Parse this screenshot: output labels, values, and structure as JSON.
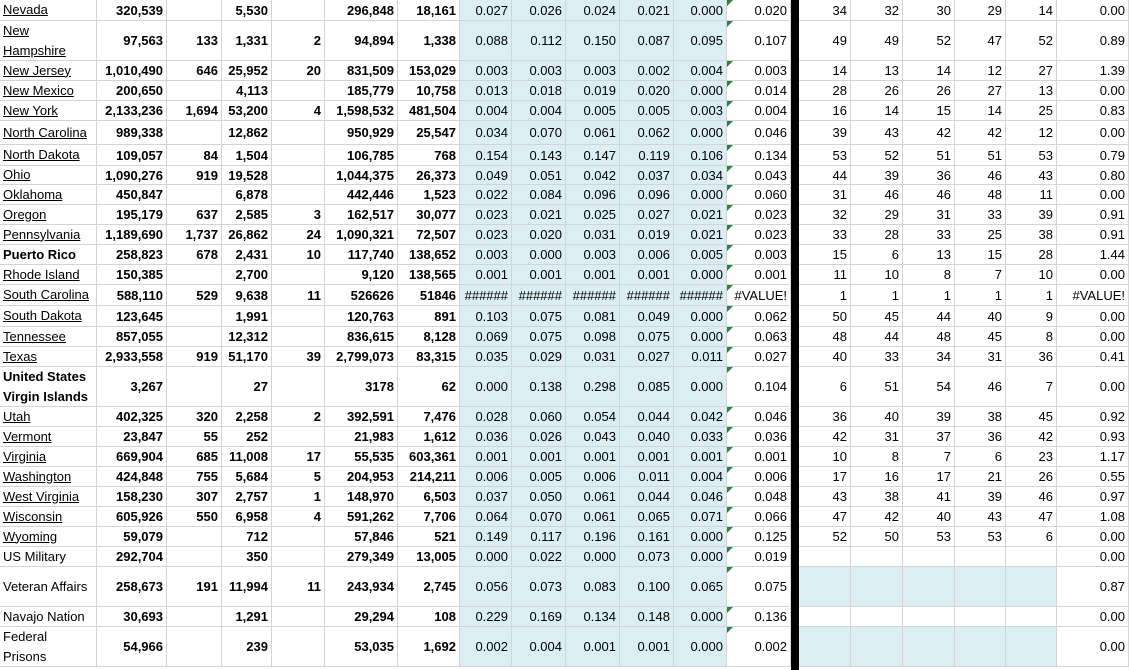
{
  "table": {
    "rows": [
      [
        "Nevada",
        "320,539",
        null,
        "5,530",
        null,
        "296,848",
        "18,161",
        "0.027",
        "0.026",
        "0.024",
        "0.021",
        "0.000",
        "0.020",
        "34",
        "32",
        "30",
        "29",
        "14",
        "0.00"
      ],
      [
        "New Hampshire",
        "97,563",
        "133",
        "1,331",
        "2",
        "94,894",
        "1,338",
        "0.088",
        "0.112",
        "0.150",
        "0.087",
        "0.095",
        "0.107",
        "49",
        "49",
        "52",
        "47",
        "52",
        "0.89"
      ],
      [
        "New Jersey",
        "1,010,490",
        "646",
        "25,952",
        "20",
        "831,509",
        "153,029",
        "0.003",
        "0.003",
        "0.003",
        "0.002",
        "0.004",
        "0.003",
        "14",
        "13",
        "14",
        "12",
        "27",
        "1.39"
      ],
      [
        "New Mexico",
        "200,650",
        null,
        "4,113",
        null,
        "185,779",
        "10,758",
        "0.013",
        "0.018",
        "0.019",
        "0.020",
        "0.000",
        "0.014",
        "28",
        "26",
        "26",
        "27",
        "13",
        "0.00"
      ],
      [
        "New York",
        "2,133,236",
        "1,694",
        "53,200",
        "4",
        "1,598,532",
        "481,504",
        "0.004",
        "0.004",
        "0.005",
        "0.005",
        "0.003",
        "0.004",
        "16",
        "14",
        "15",
        "14",
        "25",
        "0.83"
      ],
      [
        "North Carolina",
        "989,338",
        null,
        "12,862",
        null,
        "950,929",
        "25,547",
        "0.034",
        "0.070",
        "0.061",
        "0.062",
        "0.000",
        "0.046",
        "39",
        "43",
        "42",
        "42",
        "12",
        "0.00"
      ],
      [
        "North Dakota",
        "109,057",
        "84",
        "1,504",
        null,
        "106,785",
        "768",
        "0.154",
        "0.143",
        "0.147",
        "0.119",
        "0.106",
        "0.134",
        "53",
        "52",
        "51",
        "51",
        "53",
        "0.79"
      ],
      [
        "Ohio",
        "1,090,276",
        "919",
        "19,528",
        null,
        "1,044,375",
        "26,373",
        "0.049",
        "0.051",
        "0.042",
        "0.037",
        "0.034",
        "0.043",
        "44",
        "39",
        "36",
        "46",
        "43",
        "0.80"
      ],
      [
        "Oklahoma",
        "450,847",
        null,
        "6,878",
        null,
        "442,446",
        "1,523",
        "0.022",
        "0.084",
        "0.096",
        "0.096",
        "0.000",
        "0.060",
        "31",
        "46",
        "46",
        "48",
        "11",
        "0.00"
      ],
      [
        "Oregon",
        "195,179",
        "637",
        "2,585",
        "3",
        "162,517",
        "30,077",
        "0.023",
        "0.021",
        "0.025",
        "0.027",
        "0.021",
        "0.023",
        "32",
        "29",
        "31",
        "33",
        "39",
        "0.91"
      ],
      [
        "Pennsylvania",
        "1,189,690",
        "1,737",
        "26,862",
        "24",
        "1,090,321",
        "72,507",
        "0.023",
        "0.020",
        "0.031",
        "0.019",
        "0.021",
        "0.023",
        "33",
        "28",
        "33",
        "25",
        "38",
        "0.91"
      ],
      [
        "Puerto Rico",
        "258,823",
        "678",
        "2,431",
        "10",
        "117,740",
        "138,652",
        "0.003",
        "0.000",
        "0.003",
        "0.006",
        "0.005",
        "0.003",
        "15",
        "6",
        "13",
        "15",
        "28",
        "1.44"
      ],
      [
        "Rhode Island",
        "150,385",
        null,
        "2,700",
        null,
        "9,120",
        "138,565",
        "0.001",
        "0.001",
        "0.001",
        "0.001",
        "0.000",
        "0.001",
        "11",
        "10",
        "8",
        "7",
        "10",
        "0.00"
      ],
      [
        "South Carolina",
        "588,110",
        "529",
        "9,638",
        "11",
        "526626",
        "51846",
        "######",
        "######",
        "######",
        "######",
        "######",
        "#VALUE!",
        "1",
        "1",
        "1",
        "1",
        "1",
        "#VALUE!"
      ],
      [
        "South Dakota",
        "123,645",
        null,
        "1,991",
        null,
        "120,763",
        "891",
        "0.103",
        "0.075",
        "0.081",
        "0.049",
        "0.000",
        "0.062",
        "50",
        "45",
        "44",
        "40",
        "9",
        "0.00"
      ],
      [
        "Tennessee",
        "857,055",
        null,
        "12,312",
        null,
        "836,615",
        "8,128",
        "0.069",
        "0.075",
        "0.098",
        "0.075",
        "0.000",
        "0.063",
        "48",
        "44",
        "48",
        "45",
        "8",
        "0.00"
      ],
      [
        "Texas",
        "2,933,558",
        "919",
        "51,170",
        "39",
        "2,799,073",
        "83,315",
        "0.035",
        "0.029",
        "0.031",
        "0.027",
        "0.011",
        "0.027",
        "40",
        "33",
        "34",
        "31",
        "36",
        "0.41"
      ],
      [
        "United States Virgin Islands",
        "3,267",
        null,
        "27",
        null,
        "3178",
        "62",
        "0.000",
        "0.138",
        "0.298",
        "0.085",
        "0.000",
        "0.104",
        "6",
        "51",
        "54",
        "46",
        "7",
        "0.00"
      ],
      [
        "Utah",
        "402,325",
        "320",
        "2,258",
        "2",
        "392,591",
        "7,476",
        "0.028",
        "0.060",
        "0.054",
        "0.044",
        "0.042",
        "0.046",
        "36",
        "40",
        "39",
        "38",
        "45",
        "0.92"
      ],
      [
        "Vermont",
        "23,847",
        "55",
        "252",
        null,
        "21,983",
        "1,612",
        "0.036",
        "0.026",
        "0.043",
        "0.040",
        "0.033",
        "0.036",
        "42",
        "31",
        "37",
        "36",
        "42",
        "0.93"
      ],
      [
        "Virginia",
        "669,904",
        "685",
        "11,008",
        "17",
        "55,535",
        "603,361",
        "0.001",
        "0.001",
        "0.001",
        "0.001",
        "0.001",
        "0.001",
        "10",
        "8",
        "7",
        "6",
        "23",
        "1.17"
      ],
      [
        "Washington",
        "424,848",
        "755",
        "5,684",
        "5",
        "204,953",
        "214,211",
        "0.006",
        "0.005",
        "0.006",
        "0.011",
        "0.004",
        "0.006",
        "17",
        "16",
        "17",
        "21",
        "26",
        "0.55"
      ],
      [
        "West Virginia",
        "158,230",
        "307",
        "2,757",
        "1",
        "148,970",
        "6,503",
        "0.037",
        "0.050",
        "0.061",
        "0.044",
        "0.046",
        "0.048",
        "43",
        "38",
        "41",
        "39",
        "46",
        "0.97"
      ],
      [
        "Wisconsin",
        "605,926",
        "550",
        "6,958",
        "4",
        "591,262",
        "7,706",
        "0.064",
        "0.070",
        "0.061",
        "0.065",
        "0.071",
        "0.066",
        "47",
        "42",
        "40",
        "43",
        "47",
        "1.08"
      ],
      [
        "Wyoming",
        "59,079",
        null,
        "712",
        null,
        "57,846",
        "521",
        "0.149",
        "0.117",
        "0.196",
        "0.161",
        "0.000",
        "0.125",
        "52",
        "50",
        "53",
        "53",
        "6",
        "0.00"
      ],
      [
        "US Military",
        "292,704",
        null,
        "350",
        null,
        "279,349",
        "13,005",
        "0.000",
        "0.022",
        "0.000",
        "0.073",
        "0.000",
        "0.019",
        null,
        null,
        null,
        null,
        null,
        "0.00"
      ],
      [
        "Veteran Affairs",
        "258,673",
        "191",
        "11,994",
        "11",
        "243,934",
        "2,745",
        "0.056",
        "0.073",
        "0.083",
        "0.100",
        "0.065",
        "0.075",
        null,
        null,
        null,
        null,
        null,
        "0.87"
      ],
      [
        "Navajo Nation",
        "30,693",
        null,
        "1,291",
        null,
        "29,294",
        "108",
        "0.229",
        "0.169",
        "0.134",
        "0.148",
        "0.000",
        "0.136",
        null,
        null,
        null,
        null,
        null,
        "0.00"
      ],
      [
        "Federal Prisons",
        "54,966",
        null,
        "239",
        null,
        "53,035",
        "1,692",
        "0.002",
        "0.004",
        "0.001",
        "0.001",
        "0.000",
        "0.002",
        null,
        null,
        null,
        null,
        null,
        "0.00"
      ]
    ]
  }
}
